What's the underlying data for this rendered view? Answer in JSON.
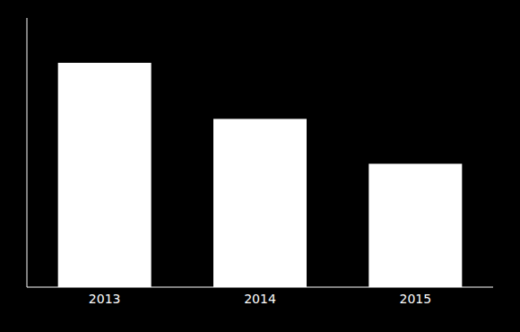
{
  "chart_data": {
    "type": "bar",
    "categories": [
      "2013",
      "2014",
      "2015"
    ],
    "values": [
      100,
      75,
      55
    ],
    "color": "#ffffff",
    "ylim": [
      0,
      120
    ],
    "tick_labels": "x",
    "grid": false
  }
}
